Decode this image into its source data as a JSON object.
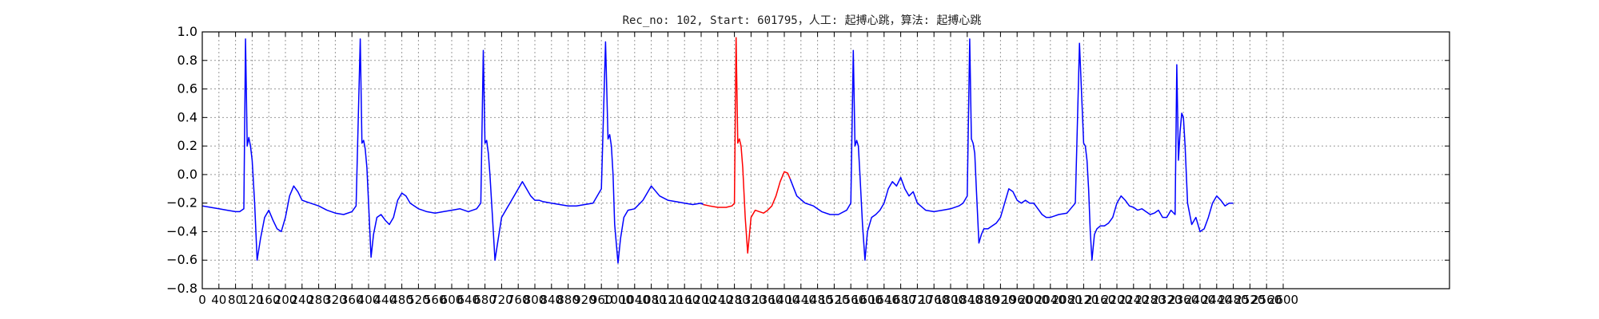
{
  "chart_data": {
    "type": "line",
    "title": "Rec_no: 102, Start: 601795，人工: 起搏心跳，算法: 起搏心跳",
    "xlabel": "",
    "ylabel": "",
    "xlim": [
      0,
      3000
    ],
    "ylim": [
      -0.8,
      1.0
    ],
    "grid": true,
    "x_ticks": [
      0,
      40,
      80,
      120,
      160,
      200,
      240,
      280,
      320,
      360,
      400,
      440,
      480,
      520,
      560,
      600,
      640,
      680,
      720,
      760,
      800,
      840,
      880,
      920,
      960,
      1000,
      1040,
      1080,
      1120,
      1160,
      1200,
      1240,
      1280,
      1320,
      1360,
      1400,
      1440,
      1480,
      1520,
      1560,
      1600,
      1640,
      1680,
      1720,
      1760,
      1800,
      1840,
      1880,
      1920,
      1960,
      2000,
      2040,
      2080,
      2120,
      2160,
      2200,
      2240,
      2280,
      2320,
      2360,
      2400,
      2440,
      2480,
      2520,
      2560,
      2600
    ],
    "x_tick_labels": [
      "0",
      "40",
      "80",
      "120",
      "160",
      "200",
      "240",
      "280",
      "320",
      "360",
      "400",
      "440",
      "480",
      "520",
      "560",
      "600",
      "640",
      "680",
      "720",
      "760",
      "800",
      "840",
      "880",
      "920",
      "960",
      "1000",
      "1040",
      "1080",
      "1120",
      "1160",
      "1200",
      "1240",
      "1280",
      "1320",
      "1360",
      "1400",
      "1440",
      "1480",
      "1520",
      "1560",
      "1600",
      "1640",
      "1680",
      "1720",
      "1760",
      "1800",
      "1840",
      "1880",
      "1920",
      "1960",
      "2000",
      "2040",
      "2080",
      "2120",
      "2160",
      "2200",
      "2240",
      "2280",
      "2320",
      "2360",
      "2400",
      "2440",
      "2480",
      "2520",
      "2560",
      "2600"
    ],
    "y_ticks": [
      -0.8,
      -0.6,
      -0.4,
      -0.2,
      0.0,
      0.2,
      0.4,
      0.6,
      0.8,
      1.0
    ],
    "y_tick_labels": [
      "−0.8",
      "−0.6",
      "−0.4",
      "−0.2",
      "0.0",
      "0.2",
      "0.4",
      "0.6",
      "0.8",
      "1.0"
    ],
    "series": [
      {
        "color": "#0000ff",
        "x": [
          0,
          20,
          40,
          60,
          80,
          90,
          100,
          104,
          108,
          112,
          116,
          120,
          126,
          132,
          140,
          150,
          160,
          170,
          180,
          190,
          200,
          210,
          220,
          230,
          240,
          250,
          260,
          280,
          300,
          320,
          340,
          360,
          370,
          380,
          384,
          388,
          392,
          396,
          400,
          406,
          412,
          420,
          430,
          440,
          450,
          460,
          470,
          480,
          490,
          500,
          510,
          520,
          530,
          540,
          560,
          580,
          600,
          620,
          640,
          660,
          670,
          676,
          680,
          684,
          688,
          692,
          698,
          704,
          712,
          720,
          730,
          740,
          750,
          760,
          770,
          780,
          790,
          800,
          810,
          820,
          840,
          860,
          880,
          900,
          920,
          940,
          960,
          970,
          976,
          980,
          984,
          988,
          992,
          1000,
          1006,
          1014,
          1024,
          1040,
          1060,
          1080,
          1100,
          1120,
          1140,
          1160,
          1180,
          1200,
          1205
        ],
        "y": [
          -0.22,
          -0.23,
          -0.24,
          -0.25,
          -0.26,
          -0.26,
          -0.24,
          0.95,
          0.2,
          0.26,
          0.2,
          0.1,
          -0.2,
          -0.6,
          -0.45,
          -0.3,
          -0.25,
          -0.32,
          -0.38,
          -0.4,
          -0.3,
          -0.15,
          -0.08,
          -0.12,
          -0.18,
          -0.19,
          -0.2,
          -0.22,
          -0.25,
          -0.27,
          -0.28,
          -0.26,
          -0.22,
          0.95,
          0.22,
          0.24,
          0.18,
          0.05,
          -0.2,
          -0.58,
          -0.42,
          -0.3,
          -0.28,
          -0.32,
          -0.35,
          -0.3,
          -0.18,
          -0.13,
          -0.15,
          -0.2,
          -0.22,
          -0.24,
          -0.25,
          -0.26,
          -0.27,
          -0.26,
          -0.25,
          -0.24,
          -0.26,
          -0.24,
          -0.2,
          0.87,
          0.22,
          0.24,
          0.15,
          0.0,
          -0.3,
          -0.6,
          -0.45,
          -0.3,
          -0.25,
          -0.2,
          -0.15,
          -0.1,
          -0.05,
          -0.1,
          -0.15,
          -0.18,
          -0.18,
          -0.19,
          -0.2,
          -0.21,
          -0.22,
          -0.22,
          -0.21,
          -0.2,
          -0.1,
          0.93,
          0.25,
          0.28,
          0.2,
          0.0,
          -0.35,
          -0.62,
          -0.45,
          -0.3,
          -0.25,
          -0.24,
          -0.18,
          -0.08,
          -0.15,
          -0.18,
          -0.19,
          -0.2,
          -0.21,
          -0.2,
          -0.21
        ]
      },
      {
        "color": "#ff0000",
        "x": [
          1205,
          1220,
          1240,
          1260,
          1274,
          1280,
          1284,
          1288,
          1292,
          1296,
          1300,
          1306,
          1312,
          1320,
          1330,
          1340,
          1350,
          1360,
          1370,
          1380,
          1390,
          1400,
          1408,
          1414
        ],
        "y": [
          -0.21,
          -0.22,
          -0.23,
          -0.23,
          -0.22,
          -0.2,
          0.96,
          0.22,
          0.25,
          0.2,
          0.05,
          -0.3,
          -0.55,
          -0.3,
          -0.25,
          -0.26,
          -0.27,
          -0.25,
          -0.22,
          -0.15,
          -0.05,
          0.02,
          0.01,
          -0.03
        ]
      },
      {
        "color": "#0000ff",
        "x": [
          1414,
          1430,
          1450,
          1470,
          1490,
          1510,
          1530,
          1550,
          1560,
          1566,
          1570,
          1574,
          1578,
          1582,
          1588,
          1594,
          1600,
          1610,
          1620,
          1630,
          1640,
          1650,
          1660,
          1670,
          1680,
          1690,
          1700,
          1710,
          1720,
          1740,
          1760,
          1780,
          1800,
          1820,
          1830,
          1840,
          1846,
          1850,
          1854,
          1858,
          1862,
          1868,
          1874,
          1880,
          1890,
          1900,
          1910,
          1920,
          1930,
          1940,
          1950,
          1960,
          1970,
          1980,
          1990,
          2000,
          2010,
          2020,
          2030,
          2040,
          2050,
          2060,
          2080,
          2100,
          2110,
          2120,
          2124,
          2128,
          2132,
          2136,
          2140,
          2146,
          2152,
          2160,
          2170,
          2180,
          2190,
          2200,
          2210,
          2220,
          2230,
          2240,
          2250,
          2260,
          2270,
          2280,
          2290,
          2300,
          2310,
          2320,
          2330,
          2340,
          2344,
          2348,
          2352,
          2356,
          2360,
          2364,
          2370,
          2380,
          2390,
          2400,
          2410,
          2420,
          2430,
          2440,
          2450,
          2460,
          2470,
          2480
        ],
        "y": [
          -0.03,
          -0.15,
          -0.2,
          -0.22,
          -0.26,
          -0.28,
          -0.28,
          -0.25,
          -0.2,
          0.87,
          0.2,
          0.24,
          0.2,
          0.0,
          -0.35,
          -0.6,
          -0.4,
          -0.3,
          -0.28,
          -0.25,
          -0.2,
          -0.1,
          -0.05,
          -0.08,
          -0.02,
          -0.1,
          -0.15,
          -0.12,
          -0.2,
          -0.25,
          -0.26,
          -0.25,
          -0.24,
          -0.22,
          -0.2,
          -0.15,
          0.95,
          0.25,
          0.22,
          0.15,
          -0.1,
          -0.48,
          -0.42,
          -0.38,
          -0.38,
          -0.36,
          -0.34,
          -0.3,
          -0.2,
          -0.1,
          -0.12,
          -0.18,
          -0.2,
          -0.18,
          -0.2,
          -0.2,
          -0.24,
          -0.28,
          -0.3,
          -0.3,
          -0.29,
          -0.28,
          -0.27,
          -0.2,
          0.92,
          0.22,
          0.2,
          0.1,
          -0.1,
          -0.4,
          -0.6,
          -0.42,
          -0.38,
          -0.36,
          -0.36,
          -0.34,
          -0.3,
          -0.2,
          -0.15,
          -0.18,
          -0.22,
          -0.23,
          -0.25,
          -0.24,
          -0.26,
          -0.28,
          -0.27,
          -0.25,
          -0.3,
          -0.3,
          -0.25,
          -0.28,
          0.77,
          0.1,
          0.3,
          0.43,
          0.4,
          0.2,
          -0.2,
          -0.35,
          -0.3,
          -0.4,
          -0.38,
          -0.3,
          -0.2,
          -0.15,
          -0.18,
          -0.22,
          -0.2,
          -0.2
        ]
      }
    ]
  }
}
